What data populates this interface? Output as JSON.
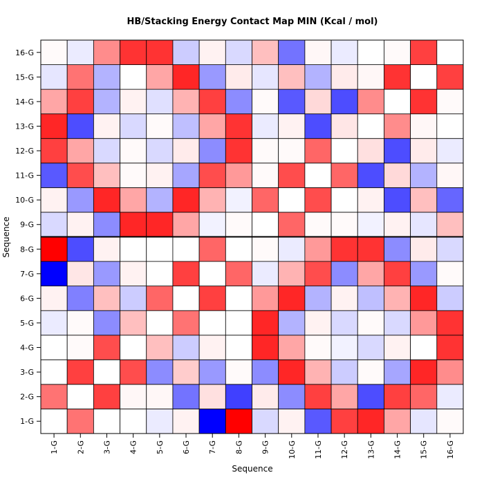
{
  "chart_data": {
    "type": "heatmap",
    "title": "HB/Stacking Energy Contact Map MIN (Kcal / mol)",
    "xlabel": "Sequence",
    "ylabel": "Sequence",
    "x_categories": [
      "1-G",
      "2-G",
      "3-G",
      "4-G",
      "5-G",
      "6-G",
      "7-G",
      "8-G",
      "9-G",
      "10-G",
      "11-G",
      "12-G",
      "13-G",
      "14-G",
      "15-G",
      "16-G"
    ],
    "y_categories": [
      "1-G",
      "2-G",
      "3-G",
      "4-G",
      "5-G",
      "6-G",
      "7-G",
      "8-G",
      "9-G",
      "10-G",
      "11-G",
      "12-G",
      "13-G",
      "14-G",
      "15-G",
      "16-G"
    ],
    "color_scale": {
      "negative": "#0000ff",
      "zero": "#ffffff",
      "positive": "#ff0000"
    },
    "values": [
      [
        0.0,
        0.55,
        0.0,
        0.0,
        -0.08,
        0.05,
        -1.0,
        1.0,
        -0.15,
        0.05,
        -0.65,
        0.75,
        0.85,
        0.35,
        -0.1,
        0.02
      ],
      [
        0.55,
        0.0,
        0.75,
        0.03,
        0.03,
        -0.55,
        0.12,
        -0.75,
        0.08,
        -0.45,
        0.75,
        0.35,
        -0.7,
        0.75,
        0.6,
        -0.08
      ],
      [
        0.0,
        0.75,
        0.0,
        0.7,
        -0.45,
        0.2,
        -0.4,
        0.02,
        -0.45,
        0.85,
        0.3,
        -0.2,
        0.02,
        -0.35,
        0.85,
        0.45
      ],
      [
        0.0,
        0.02,
        0.7,
        0.0,
        0.25,
        -0.2,
        0.05,
        0.0,
        0.85,
        0.35,
        0.02,
        -0.05,
        -0.15,
        0.05,
        0.0,
        0.8
      ],
      [
        -0.08,
        0.02,
        -0.45,
        0.25,
        0.0,
        0.55,
        0.0,
        0.0,
        0.85,
        -0.3,
        0.05,
        -0.15,
        0.02,
        -0.15,
        0.4,
        0.8
      ],
      [
        0.05,
        -0.5,
        0.25,
        -0.2,
        0.6,
        0.0,
        0.75,
        0.0,
        0.4,
        0.85,
        -0.3,
        0.05,
        -0.25,
        0.3,
        0.85,
        -0.2
      ],
      [
        -1.0,
        0.1,
        -0.4,
        0.05,
        0.0,
        0.75,
        0.0,
        0.6,
        -0.08,
        0.3,
        0.7,
        -0.45,
        0.35,
        0.75,
        -0.4,
        0.02
      ],
      [
        1.0,
        -0.7,
        0.05,
        0.0,
        0.0,
        0.0,
        0.6,
        0.0,
        0.02,
        -0.08,
        0.4,
        0.8,
        0.8,
        -0.45,
        0.08,
        -0.15
      ],
      [
        -0.15,
        0.05,
        -0.45,
        0.85,
        0.85,
        0.35,
        -0.05,
        0.02,
        0.0,
        0.6,
        0.02,
        0.02,
        -0.05,
        0.05,
        -0.1,
        0.25
      ],
      [
        0.05,
        -0.4,
        0.85,
        0.35,
        -0.3,
        0.85,
        0.3,
        -0.05,
        0.6,
        0.0,
        0.7,
        0.0,
        0.05,
        -0.7,
        0.25,
        -0.6
      ],
      [
        -0.65,
        0.7,
        0.25,
        0.02,
        0.05,
        -0.35,
        0.7,
        0.4,
        0.02,
        0.7,
        0.0,
        0.6,
        -0.7,
        0.15,
        -0.3,
        0.03
      ],
      [
        0.75,
        0.35,
        -0.15,
        0.02,
        -0.15,
        0.08,
        -0.45,
        0.8,
        0.02,
        0.02,
        0.6,
        0.0,
        0.12,
        -0.7,
        0.08,
        -0.08
      ],
      [
        0.85,
        -0.7,
        0.05,
        -0.15,
        0.02,
        -0.25,
        0.35,
        0.8,
        -0.08,
        0.05,
        -0.7,
        0.1,
        0.0,
        0.45,
        0.03,
        0.0
      ],
      [
        0.35,
        0.75,
        -0.3,
        0.05,
        -0.12,
        0.3,
        0.75,
        -0.45,
        0.02,
        -0.65,
        0.15,
        -0.7,
        0.45,
        0.0,
        0.8,
        0.02
      ],
      [
        -0.1,
        0.55,
        -0.3,
        0.0,
        0.35,
        0.85,
        -0.4,
        0.08,
        -0.1,
        0.25,
        -0.3,
        0.08,
        0.03,
        0.8,
        0.0,
        0.75
      ],
      [
        0.02,
        -0.08,
        0.45,
        0.8,
        0.8,
        -0.2,
        0.05,
        -0.15,
        0.25,
        -0.55,
        0.03,
        -0.08,
        0.0,
        0.02,
        0.75,
        0.0
      ]
    ]
  }
}
